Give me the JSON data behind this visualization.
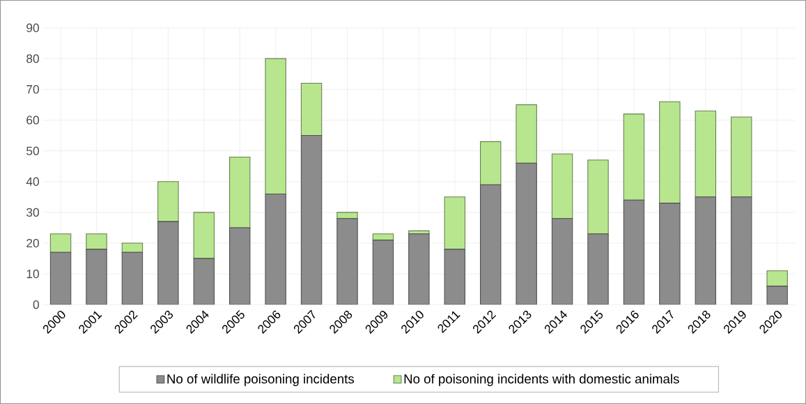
{
  "chart_data": {
    "type": "bar",
    "stacked": true,
    "categories": [
      "2000",
      "2001",
      "2002",
      "2003",
      "2004",
      "2005",
      "2006",
      "2007",
      "2008",
      "2009",
      "2010",
      "2011",
      "2012",
      "2013",
      "2014",
      "2015",
      "2016",
      "2017",
      "2018",
      "2019",
      "2020"
    ],
    "series": [
      {
        "name": "No of wildlife poisoning incidents",
        "color": "#8c8c8c",
        "values": [
          17,
          18,
          17,
          27,
          15,
          25,
          36,
          55,
          28,
          21,
          23,
          18,
          39,
          46,
          28,
          23,
          34,
          33,
          35,
          35,
          6
        ]
      },
      {
        "name": "No of poisoning incidents with domestic animals",
        "color": "#b8e68f",
        "values": [
          6,
          5,
          3,
          13,
          15,
          23,
          44,
          17,
          2,
          2,
          1,
          17,
          14,
          19,
          21,
          24,
          28,
          33,
          28,
          26,
          5
        ]
      }
    ],
    "ylim": [
      0,
      90
    ],
    "yticks": [
      0,
      10,
      20,
      30,
      40,
      50,
      60,
      70,
      80,
      90
    ],
    "grid": true,
    "legend": "bottom"
  }
}
